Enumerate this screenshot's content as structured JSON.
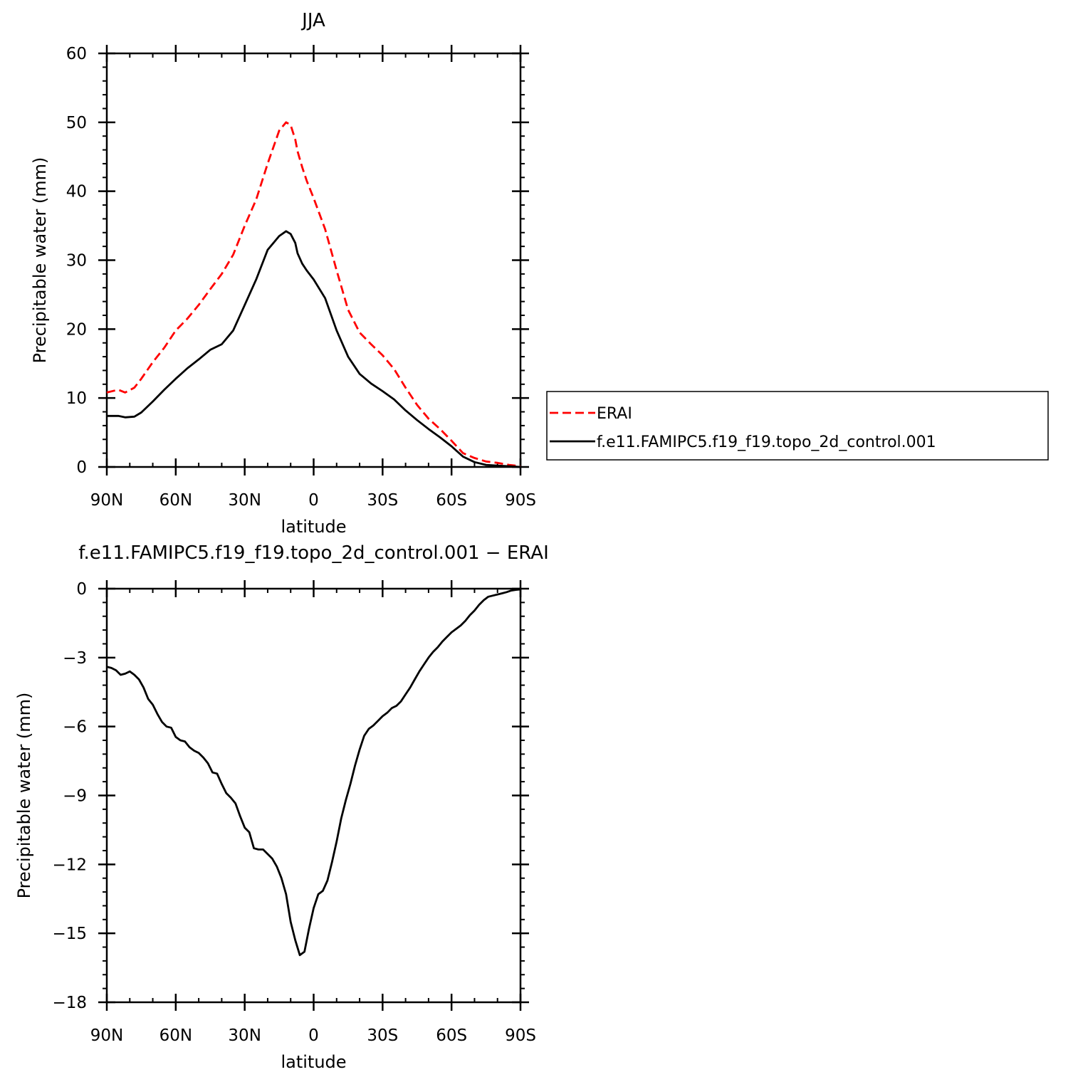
{
  "chart_data": [
    {
      "type": "line",
      "title": "JJA",
      "xlabel": "latitude",
      "ylabel": "Precipitable water (mm)",
      "xlim": [
        90,
        -90
      ],
      "ylim": [
        0,
        60
      ],
      "x_ticks": [
        {
          "value": 90,
          "label": "90N"
        },
        {
          "value": 60,
          "label": "60N"
        },
        {
          "value": 30,
          "label": "30N"
        },
        {
          "value": 0,
          "label": "0"
        },
        {
          "value": -30,
          "label": "30S"
        },
        {
          "value": -60,
          "label": "60S"
        },
        {
          "value": -90,
          "label": "90S"
        }
      ],
      "y_ticks": [
        {
          "value": 0,
          "label": "0"
        },
        {
          "value": 10,
          "label": "10"
        },
        {
          "value": 20,
          "label": "20"
        },
        {
          "value": 30,
          "label": "30"
        },
        {
          "value": 40,
          "label": "40"
        },
        {
          "value": 50,
          "label": "50"
        },
        {
          "value": 60,
          "label": "60"
        }
      ],
      "legend_position": "right",
      "series": [
        {
          "name": "ERAI",
          "color": "#ff0000",
          "dashed": true,
          "x": [
            90,
            85,
            82,
            78,
            75,
            70,
            65,
            60,
            55,
            50,
            45,
            40,
            35,
            30,
            25,
            20,
            15,
            12,
            10,
            8,
            7,
            5,
            3,
            0,
            -5,
            -10,
            -15,
            -20,
            -25,
            -30,
            -35,
            -40,
            -45,
            -50,
            -55,
            -60,
            -65,
            -70,
            -75,
            -80,
            -85,
            -90
          ],
          "y": [
            10.8,
            11.2,
            10.8,
            11.5,
            12.8,
            15.2,
            17.3,
            19.8,
            21.5,
            23.5,
            25.8,
            28.0,
            30.8,
            35.0,
            38.8,
            44.0,
            48.8,
            50.0,
            49.6,
            47.5,
            45.8,
            43.5,
            41.5,
            39.0,
            34.5,
            28.5,
            22.8,
            19.5,
            17.8,
            16.2,
            14.2,
            11.5,
            9.0,
            7.0,
            5.5,
            3.8,
            2.0,
            1.3,
            0.8,
            0.6,
            0.3,
            0.1
          ]
        },
        {
          "name": "f.e11.FAMIPC5.f19_f19.topo_2d_control.001",
          "color": "#000000",
          "dashed": false,
          "x": [
            90,
            85,
            82,
            78,
            75,
            70,
            65,
            60,
            55,
            50,
            45,
            40,
            35,
            30,
            25,
            20,
            15,
            12,
            10,
            8,
            7,
            5,
            3,
            0,
            -5,
            -10,
            -15,
            -20,
            -25,
            -30,
            -35,
            -40,
            -45,
            -50,
            -55,
            -60,
            -65,
            -70,
            -75,
            -80,
            -85,
            -90
          ],
          "y": [
            7.4,
            7.4,
            7.2,
            7.3,
            7.9,
            9.5,
            11.2,
            12.8,
            14.3,
            15.6,
            17.0,
            17.8,
            19.8,
            23.5,
            27.2,
            31.5,
            33.5,
            34.2,
            33.8,
            32.5,
            31.0,
            29.5,
            28.5,
            27.2,
            24.5,
            19.8,
            16.0,
            13.5,
            12.1,
            11.0,
            9.8,
            8.2,
            6.8,
            5.5,
            4.3,
            3.0,
            1.5,
            0.7,
            0.3,
            0.2,
            0.1,
            0.0
          ]
        }
      ]
    },
    {
      "type": "line",
      "title": "f.e11.FAMIPC5.f19_f19.topo_2d_control.001 − ERAI",
      "xlabel": "latitude",
      "ylabel": "Precipitable water (mm)",
      "xlim": [
        90,
        -90
      ],
      "ylim": [
        -18,
        0
      ],
      "x_ticks": [
        {
          "value": 90,
          "label": "90N"
        },
        {
          "value": 60,
          "label": "60N"
        },
        {
          "value": 30,
          "label": "30N"
        },
        {
          "value": 0,
          "label": "0"
        },
        {
          "value": -30,
          "label": "30S"
        },
        {
          "value": -60,
          "label": "60S"
        },
        {
          "value": -90,
          "label": "90S"
        }
      ],
      "y_ticks": [
        {
          "value": 0,
          "label": "0"
        },
        {
          "value": -3,
          "label": "−3"
        },
        {
          "value": -6,
          "label": "−6"
        },
        {
          "value": -9,
          "label": "−9"
        },
        {
          "value": -12,
          "label": "−12"
        },
        {
          "value": -15,
          "label": "−15"
        },
        {
          "value": -18,
          "label": "−18"
        }
      ],
      "series": [
        {
          "color": "#000000",
          "dashed": false,
          "x": [
            90,
            88,
            86,
            84,
            82,
            80,
            78,
            76,
            74,
            72,
            70,
            68,
            66,
            64,
            62,
            60,
            58,
            56,
            54,
            52,
            50,
            48,
            46,
            44,
            42,
            40,
            38,
            36,
            34,
            32,
            30,
            28,
            26,
            24,
            22,
            20,
            18,
            16,
            14,
            12,
            10,
            8,
            6,
            4,
            2,
            0,
            -2,
            -4,
            -6,
            -8,
            -10,
            -12,
            -14,
            -16,
            -18,
            -20,
            -22,
            -24,
            -26,
            -28,
            -30,
            -32,
            -34,
            -36,
            -38,
            -40,
            -42,
            -44,
            -46,
            -48,
            -50,
            -52,
            -54,
            -56,
            -58,
            -60,
            -62,
            -64,
            -66,
            -68,
            -70,
            -72,
            -74,
            -76,
            -78,
            -80,
            -82,
            -84,
            -86,
            -88,
            -90
          ],
          "y": [
            -3.4,
            -3.45,
            -3.55,
            -3.75,
            -3.7,
            -3.6,
            -3.75,
            -3.95,
            -4.3,
            -4.8,
            -5.05,
            -5.45,
            -5.8,
            -6.0,
            -6.05,
            -6.45,
            -6.6,
            -6.65,
            -6.9,
            -7.05,
            -7.15,
            -7.35,
            -7.6,
            -8.0,
            -8.05,
            -8.5,
            -8.9,
            -9.1,
            -9.35,
            -9.9,
            -10.4,
            -10.6,
            -11.3,
            -11.35,
            -11.35,
            -11.55,
            -11.75,
            -12.1,
            -12.6,
            -13.3,
            -14.5,
            -15.3,
            -15.95,
            -15.8,
            -14.8,
            -13.9,
            -13.3,
            -13.15,
            -12.7,
            -11.9,
            -11.0,
            -10.0,
            -9.2,
            -8.5,
            -7.7,
            -7.0,
            -6.4,
            -6.1,
            -5.95,
            -5.75,
            -5.55,
            -5.4,
            -5.2,
            -5.1,
            -4.9,
            -4.6,
            -4.3,
            -3.95,
            -3.6,
            -3.3,
            -3.0,
            -2.75,
            -2.55,
            -2.3,
            -2.1,
            -1.9,
            -1.75,
            -1.6,
            -1.4,
            -1.15,
            -0.95,
            -0.7,
            -0.5,
            -0.35,
            -0.3,
            -0.25,
            -0.2,
            -0.15,
            -0.08,
            -0.05,
            -0.03
          ]
        }
      ]
    }
  ]
}
